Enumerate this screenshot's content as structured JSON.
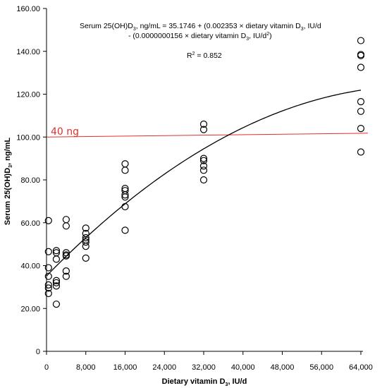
{
  "chart_data": {
    "type": "scatter",
    "xlabel_main": "Dietary vitamin D",
    "xlabel_sub": "3",
    "xlabel_tail": ", IU/d",
    "ylabel_main": "Serum 25(OH)D",
    "ylabel_sub": "3",
    "ylabel_tail": ", ng/mL",
    "xlim": [
      0,
      64000
    ],
    "ylim": [
      0,
      160
    ],
    "x_ticks": [
      0,
      8000,
      16000,
      24000,
      32000,
      40000,
      48000,
      56000,
      64000
    ],
    "x_tick_labels": [
      "0",
      "8,000",
      "16,000",
      "24,000",
      "32,000",
      "40,000",
      "48,000",
      "56,000",
      "64,000"
    ],
    "y_ticks": [
      0,
      20,
      40,
      60,
      80,
      100,
      120,
      140,
      160
    ],
    "y_tick_labels": [
      "0",
      "20.00",
      "40.00",
      "60.00",
      "80.00",
      "100.00",
      "120.00",
      "140.00",
      "160.00"
    ],
    "grid": false,
    "equation": {
      "line1": {
        "a": "Serum 25(OH)D",
        "a_sub": "3",
        "b": ", ng/mL = 35.1746 + (0.002353 × dietary vitamin D",
        "b_sub": "3",
        "c": ", IU/d"
      },
      "line2": {
        "a": "- (0.0000000156 × dietary vitamin D",
        "a_sub": "3",
        "b": ", IU/d",
        "b_sup": "2",
        "c": ")"
      },
      "r2_label": "R",
      "r2_sup": "2",
      "r2_value": " = 0.852"
    },
    "fit": {
      "intercept": 35.1746,
      "linear": 0.002353,
      "quadratic": -1.56e-08
    },
    "reference_line": {
      "label": "40 ng",
      "y_start": 100,
      "y_end": 101.8,
      "color": "#e0302b"
    },
    "series": [
      {
        "marker": "open-circle",
        "points": [
          [
            400,
            61
          ],
          [
            400,
            46.5
          ],
          [
            400,
            39
          ],
          [
            400,
            35
          ],
          [
            400,
            31
          ],
          [
            400,
            29.5
          ],
          [
            400,
            27
          ],
          [
            2000,
            47
          ],
          [
            2000,
            46
          ],
          [
            2000,
            43
          ],
          [
            2000,
            33
          ],
          [
            2000,
            32
          ],
          [
            2000,
            30.5
          ],
          [
            2000,
            22
          ],
          [
            4000,
            61.5
          ],
          [
            4000,
            58.5
          ],
          [
            4000,
            46
          ],
          [
            4000,
            45
          ],
          [
            4000,
            44.5
          ],
          [
            4000,
            37.5
          ],
          [
            4000,
            35
          ],
          [
            8000,
            57.5
          ],
          [
            8000,
            55
          ],
          [
            8000,
            53
          ],
          [
            8000,
            52
          ],
          [
            8000,
            51
          ],
          [
            8000,
            49
          ],
          [
            8000,
            43.5
          ],
          [
            16000,
            87.5
          ],
          [
            16000,
            84.5
          ],
          [
            16000,
            76
          ],
          [
            16000,
            75
          ],
          [
            16000,
            73
          ],
          [
            16000,
            72
          ],
          [
            16000,
            67.5
          ],
          [
            16000,
            56.5
          ],
          [
            32000,
            106
          ],
          [
            32000,
            103.5
          ],
          [
            32000,
            90
          ],
          [
            32000,
            89
          ],
          [
            32000,
            86.5
          ],
          [
            32000,
            84.5
          ],
          [
            32000,
            80
          ],
          [
            64000,
            145
          ],
          [
            64000,
            138.5
          ],
          [
            64000,
            138
          ],
          [
            64000,
            132.5
          ],
          [
            64000,
            116.5
          ],
          [
            64000,
            112
          ],
          [
            64000,
            104
          ],
          [
            64000,
            93
          ]
        ]
      }
    ]
  }
}
